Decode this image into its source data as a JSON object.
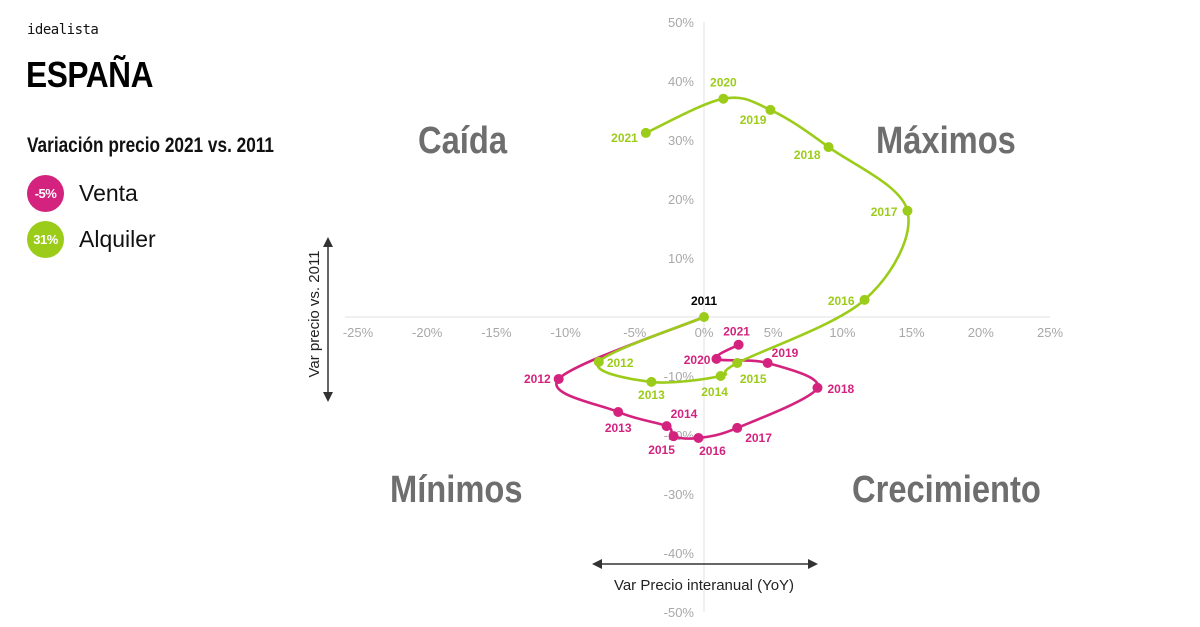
{
  "header": {
    "brand": "idealista",
    "title": "ESPAÑA",
    "subtitle": "Variación precio 2021 vs. 2011"
  },
  "legend": [
    {
      "badge": "-5%",
      "label": "Venta",
      "color": "#d4237f"
    },
    {
      "badge": "31%",
      "label": "Alquiler",
      "color": "#9ccc1a"
    }
  ],
  "quadrants": {
    "top_left": "Caída",
    "top_right": "Máximos",
    "bottom_left": "Mínimos",
    "bottom_right": "Crecimiento"
  },
  "axes": {
    "x_title": "Var Precio interanual (YoY)",
    "y_title": "Var precio vs. 2011",
    "x_ticks": [
      "-25%",
      "-20%",
      "-15%",
      "-10%",
      "-5%",
      "0%",
      "5%",
      "10%",
      "15%",
      "20%",
      "25%"
    ],
    "y_ticks": [
      "50%",
      "40%",
      "30%",
      "20%",
      "10%",
      "0%",
      "-10%",
      "-20%",
      "-30%",
      "-40%",
      "-50%"
    ]
  },
  "colors": {
    "venta": "#d4237f",
    "alquiler": "#9ccc1a",
    "tick": "#a8a8a8",
    "quadrant": "#6e6e6e",
    "origin_label": "#000000"
  },
  "chart_data": {
    "type": "scatter",
    "title": "ESPAÑA — Variación precio 2021 vs. 2011",
    "xlabel": "Var Precio interanual (YoY)",
    "ylabel": "Var precio vs. 2011",
    "xlim": [
      -25,
      25
    ],
    "ylim": [
      -50,
      50
    ],
    "grid": false,
    "legend_position": "top-left",
    "connected": true,
    "series": [
      {
        "name": "Venta",
        "summary": "-5%",
        "color": "#d4237f",
        "points": [
          {
            "label": "2011",
            "x": 0.0,
            "y": 0.0
          },
          {
            "label": "2012",
            "x": -10.5,
            "y": -10.5
          },
          {
            "label": "2013",
            "x": -6.2,
            "y": -16.1
          },
          {
            "label": "2014",
            "x": -2.7,
            "y": -18.5
          },
          {
            "label": "2015",
            "x": -2.2,
            "y": -20.2
          },
          {
            "label": "2016",
            "x": -0.4,
            "y": -20.5
          },
          {
            "label": "2017",
            "x": 2.4,
            "y": -18.8
          },
          {
            "label": "2018",
            "x": 8.2,
            "y": -12.0
          },
          {
            "label": "2019",
            "x": 4.6,
            "y": -7.8
          },
          {
            "label": "2020",
            "x": 0.9,
            "y": -7.1
          },
          {
            "label": "2021",
            "x": 2.5,
            "y": -4.7
          }
        ]
      },
      {
        "name": "Alquiler",
        "summary": "31%",
        "color": "#9ccc1a",
        "points": [
          {
            "label": "2011",
            "x": 0.0,
            "y": 0.0
          },
          {
            "label": "2012",
            "x": -7.6,
            "y": -7.6
          },
          {
            "label": "2013",
            "x": -3.8,
            "y": -11.0
          },
          {
            "label": "2014",
            "x": 1.2,
            "y": -10.0
          },
          {
            "label": "2015",
            "x": 2.4,
            "y": -7.8
          },
          {
            "label": "2016",
            "x": 11.6,
            "y": 2.9
          },
          {
            "label": "2017",
            "x": 14.7,
            "y": 18.0
          },
          {
            "label": "2018",
            "x": 9.0,
            "y": 28.8
          },
          {
            "label": "2019",
            "x": 4.8,
            "y": 35.1
          },
          {
            "label": "2020",
            "x": 1.4,
            "y": 37.0
          },
          {
            "label": "2021",
            "x": -4.2,
            "y": 31.2
          }
        ]
      }
    ],
    "annotations": [
      "Caída",
      "Máximos",
      "Mínimos",
      "Crecimiento",
      "2011"
    ]
  }
}
